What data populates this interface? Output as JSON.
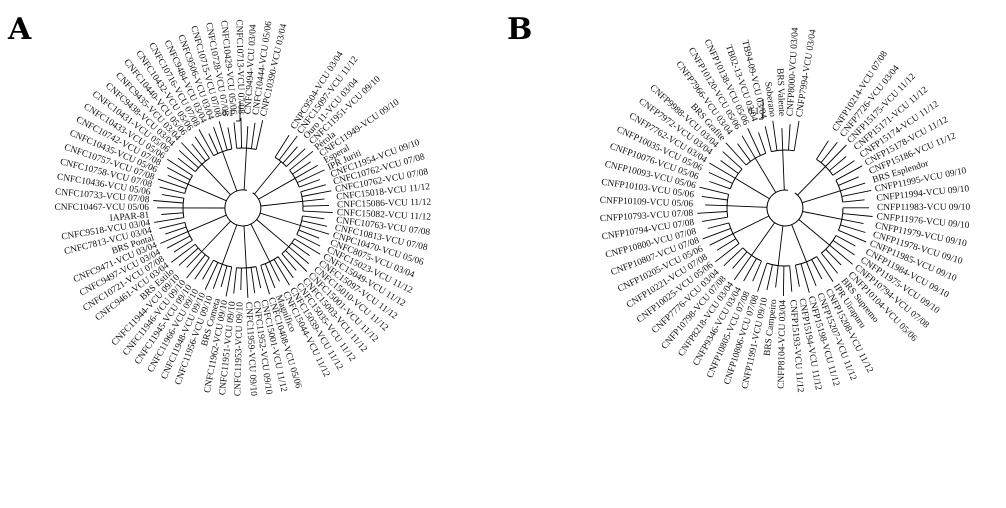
{
  "panels": [
    {
      "letter": "A",
      "scale_label": "0.1",
      "leaves": [
        "CNPC10390-VCU 03/04",
        "CNFC10444-VCU 05/06",
        "CNFC9494-VCU 03/04",
        "CNFC10713-VCU 07/08",
        "CNFC10429-VCU 05/06",
        "CNFC10728-VCU 07/08",
        "CNFC10715-VCU 07/08",
        "CNFC9506-VCU 03/04",
        "CNFC9484-VCU 03/04",
        "CNFC10716-VCU 07/08",
        "CNFC10432-VCU 05/06",
        "CNFC10440-VCU 05/06",
        "CNFC9435-VCU 03/04",
        "CNFC9438-VCU 03/04",
        "CNFC10431-VCU 05/06",
        "CNFC10433-VCU 05/06",
        "CNFC10742-VCU 07/08",
        "CNFC10435-VCU 05/06",
        "CNFC10757-VCU 07/08",
        "CNFC10758-VCU 07/08",
        "CNFC10436-VCU 05/06",
        "CNFC10733-VCU 07/08",
        "CNFC10467-VCU 05/06",
        "IAPAR-81",
        "CNFC9518-VCU 03/04",
        "CNFC7813-VCU 03/04",
        "BRS Pontal",
        "CNFC9471-VCU 03/04",
        "CNFC9497-VCU 03/04",
        "CNFC10721-VCU 07/08",
        "CNFC9461-VCU 03/04",
        "BRS Estilo",
        "CNFC11944-VCU 09/10",
        "CNFC11946-VCU 09/10",
        "CNFC11945-VCU 09/10",
        "CNFC11966-VCU 09/10",
        "CNFC11948-VCU 09/10",
        "CNFC11956-VCU 09/10",
        "BRS Cometa",
        "CNFC11962-VCU 09/10",
        "CNFC11951-VCU 09/10",
        "CNFC11953-VCU 09/10",
        "CNFC11959-VCU 09/10",
        "CNFC11952-VCU 09/10",
        "CNFC15001-VCU 11/12",
        "CNFC10408-VCU 05/06",
        "Magnífico",
        "CNFC15044-VCU 11/12",
        "CNFC15039-VCU 11/12",
        "CNFC15035-VCU 11/12",
        "CNFC15003-VCU 11/12",
        "CNFC15001-VCU 11/12",
        "CNFC15010-VCU 11/12",
        "CNFC15097-VCU 11/12",
        "CNFC15049-VCU 11/12",
        "CNFC15023-VCU 11/12",
        "CNFC8075-VCU 03/04",
        "CNPC10470-VCU 05/06",
        "CNFC10813-VCU 07/08",
        "CNFC10763-VCU 07/08",
        "CNFC15082-VCU 11/12",
        "CNFC15086-VCU 11/12",
        "CNFC15018-VCU 11/12",
        "CNFC10762-VCU 07/08",
        "CNFC10762-VCU 07/08",
        "CNFC11954-VCU 09/10",
        "IPR Juriti",
        "Esperal",
        "CNFC11949-VCU 09/10",
        "Pérola",
        "CNFC11951-VCU 09/10",
        "Ouro 11-VCU 03/04",
        "CNFC15097-VCU 11/12",
        "CNPC9504-VCU 03/04"
      ]
    },
    {
      "letter": "B",
      "scale_label": "0.1",
      "leaves": [
        "CNFP7994-VCU 03/04",
        "CNFP8000-VCU 03/04",
        "BRS Valente",
        "Soberano",
        "TB94-09-VCU 03/04",
        "TB02-13-VCU 03/04",
        "CNFP10138-VCU 05/06",
        "CNFP10120-VCU 05/06",
        "CNFP7966-VCU 03/04",
        "BRS Grafite",
        "CNFP9988-VCU 03/04",
        "CNFP7972-VCU 03/04",
        "CNFP7762-VCU 03/04",
        "CNFP10035-VCU 05/06",
        "CNFP10076-VCU 05/06",
        "CNFP10093-VCU 05/06",
        "CNFP10103-VCU 05/06",
        "CNFP10109-VCU 05/06",
        "CNFP10793-VCU 07/08",
        "CNFP10794-VCU 07/08",
        "CNFP10800-VCU 07/08",
        "CNFP10807-VCU 07/08",
        "CNFP10205-VCU 05/06",
        "CNFP10221-VCU 07/08",
        "CNFP10025-VCU 05/06",
        "CNFP7776-VCU 03/04",
        "CNFP10798-VCU 07/08",
        "CNFP8218-VCU 03/04",
        "CNFP9346-VCU 03/04",
        "CNFP10805-VCU 07/08",
        "CNFP10806-VCU 07/08",
        "CNFP11991-VCU 09/10",
        "BRS Campeiro",
        "CNFP8104-VCU 03/04",
        "CNFP15193-VCU 11/12",
        "CNFP15194-VCU 11/12",
        "CNFP15198-VCU 11/12",
        "CNFP15207-VCU 11/12",
        "CNFP15208-VCU 11/12",
        "IPR Uirapuru",
        "BRS Supremo",
        "CNFP10104-VCU 05/06",
        "CNFP10794-VCU 07/08",
        "CNFP11975-VCU 09/10",
        "CNFP11984-VCU 09/10",
        "CNFP11985-VCU 09/10",
        "CNFP11978-VCU 09/10",
        "CNFP11979-VCU 09/10",
        "CNFP11976-VCU 09/10",
        "CNFP11983-VCU 09/10",
        "CNFP11994-VCU 09/10",
        "CNFP11995-VCU 09/10",
        "BRS Esplendor",
        "CNFP15186-VCU 11/12",
        "CNFP15178-VCU 11/12",
        "CNFP15174-VCU 11/12",
        "CNFP15171-VCU 11/12",
        "CNFP15175-VCU 11/12",
        "CNFP7726-VCU 03/04",
        "CNFP10214-VCU 07/08"
      ]
    }
  ]
}
